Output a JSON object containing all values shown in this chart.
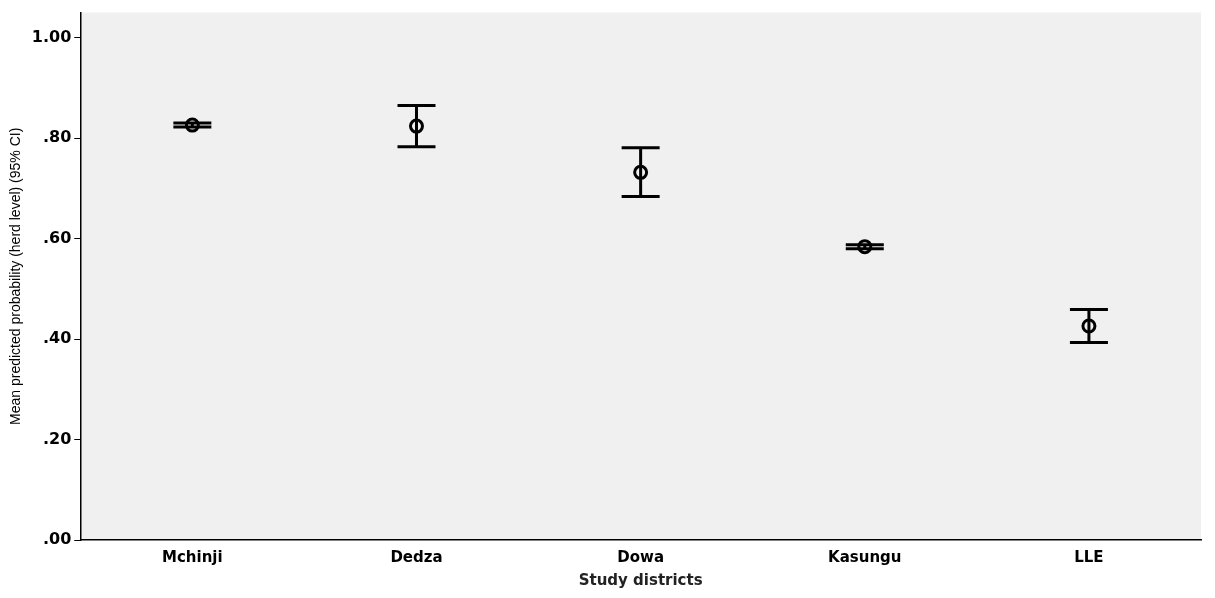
{
  "chart_data": {
    "type": "scatter",
    "xlabel": "Study districts",
    "ylabel": "Mean predicted probability (herd level) (95% CI)",
    "categories": [
      "Mchinji",
      "Dedza",
      "Dowa",
      "Kasungu",
      "LLE"
    ],
    "values": [
      0.826,
      0.824,
      0.732,
      0.584,
      0.426
    ],
    "errors": [
      [
        0.822,
        0.83
      ],
      [
        0.783,
        0.865
      ],
      [
        0.684,
        0.781
      ],
      [
        0.58,
        0.588
      ],
      [
        0.393,
        0.459
      ]
    ],
    "color": "#000000",
    "marker": "circle",
    "grid": false,
    "legend": false,
    "ylim": [
      0,
      1.05
    ],
    "yticks": [
      {
        "value": 0,
        "label": ".00"
      },
      {
        "value": 0.2,
        "label": ".20"
      },
      {
        "value": 0.4,
        "label": ".40"
      },
      {
        "value": 0.6,
        "label": ".60"
      },
      {
        "value": 0.8,
        "label": ".80"
      },
      {
        "value": 1,
        "label": "1.00"
      }
    ]
  }
}
